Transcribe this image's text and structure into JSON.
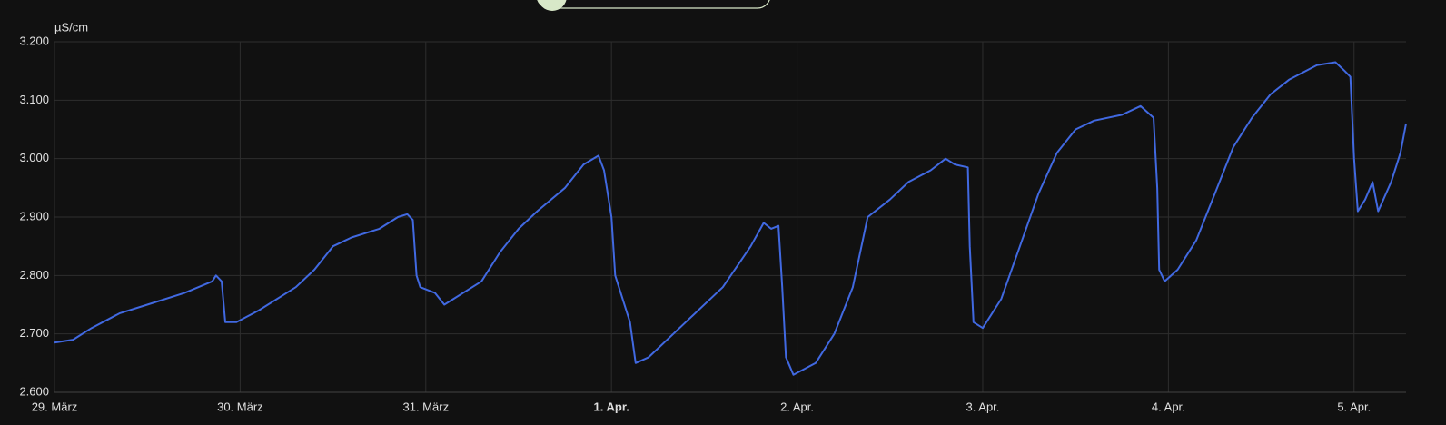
{
  "chart_data": {
    "type": "line",
    "y_label": "µS/cm",
    "x": [
      0,
      0.1,
      0.2,
      0.35,
      0.5,
      0.7,
      0.85,
      0.87,
      0.9,
      0.92,
      0.98,
      1.1,
      1.3,
      1.4,
      1.5,
      1.6,
      1.75,
      1.85,
      1.9,
      1.93,
      1.95,
      1.97,
      2.05,
      2.1,
      2.3,
      2.4,
      2.5,
      2.6,
      2.75,
      2.85,
      2.93,
      2.96,
      3.0,
      3.02,
      3.1,
      3.13,
      3.2,
      3.4,
      3.6,
      3.75,
      3.82,
      3.86,
      3.9,
      3.92,
      3.94,
      3.98,
      4.1,
      4.2,
      4.3,
      4.38,
      4.5,
      4.6,
      4.72,
      4.8,
      4.85,
      4.92,
      4.93,
      4.95,
      5.0,
      5.1,
      5.2,
      5.3,
      5.4,
      5.5,
      5.6,
      5.75,
      5.85,
      5.92,
      5.94,
      5.95,
      5.98,
      6.05,
      6.15,
      6.25,
      6.35,
      6.45,
      6.55,
      6.65,
      6.8,
      6.9,
      6.95,
      6.98,
      7.0,
      7.02,
      7.06,
      7.1,
      7.13,
      7.2,
      7.25,
      7.28
    ],
    "series": [
      {
        "color": "#4169e1",
        "values": [
          2685,
          2690,
          2710,
          2735,
          2750,
          2770,
          2790,
          2800,
          2790,
          2720,
          2720,
          2740,
          2780,
          2810,
          2850,
          2865,
          2880,
          2900,
          2905,
          2895,
          2800,
          2780,
          2770,
          2750,
          2790,
          2840,
          2880,
          2910,
          2950,
          2990,
          3005,
          2980,
          2900,
          2800,
          2720,
          2650,
          2660,
          2720,
          2780,
          2850,
          2890,
          2880,
          2885,
          2780,
          2660,
          2630,
          2650,
          2700,
          2780,
          2900,
          2930,
          2960,
          2980,
          3000,
          2990,
          2985,
          2850,
          2720,
          2710,
          2760,
          2850,
          2940,
          3010,
          3050,
          3065,
          3075,
          3090,
          3070,
          2950,
          2810,
          2790,
          2810,
          2860,
          2940,
          3020,
          3070,
          3110,
          3135,
          3160,
          3165,
          3150,
          3140,
          3000,
          2910,
          2930,
          2960,
          2910,
          2960,
          3010,
          3060
        ]
      }
    ],
    "xlim": [
      0,
      7.28
    ],
    "xticks": [
      {
        "value": 0,
        "label": "29. März"
      },
      {
        "value": 1,
        "label": "30. März"
      },
      {
        "value": 2,
        "label": "31. März"
      },
      {
        "value": 3,
        "label": "1. Apr."
      },
      {
        "value": 4,
        "label": "2. Apr."
      },
      {
        "value": 5,
        "label": "3. Apr."
      },
      {
        "value": 6,
        "label": "4. Apr."
      },
      {
        "value": 7,
        "label": "5. Apr."
      }
    ],
    "ylim": [
      2600,
      3200
    ],
    "yticks": [
      {
        "value": 2600,
        "label": "2.600"
      },
      {
        "value": 2700,
        "label": "2.700"
      },
      {
        "value": 2800,
        "label": "2.800"
      },
      {
        "value": 2900,
        "label": "2.900"
      },
      {
        "value": 3000,
        "label": "3.000"
      },
      {
        "value": 3100,
        "label": "3.100"
      },
      {
        "value": 3200,
        "label": "3.200"
      }
    ],
    "grid": true
  }
}
